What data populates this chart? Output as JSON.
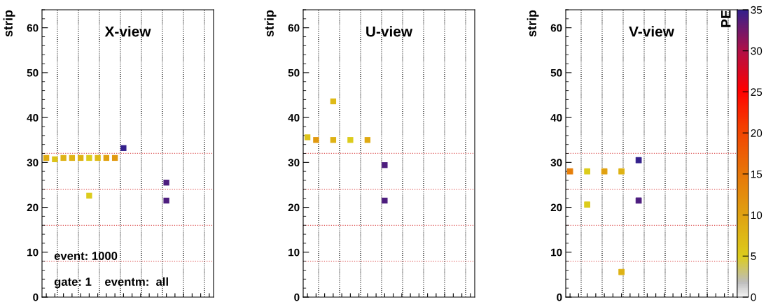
{
  "chart_data": [
    {
      "type": "scatter",
      "title": "X-view",
      "ylabel": "strip",
      "marker": "square",
      "grid": "x",
      "tick_labels": "y",
      "categories": [
        null,
        null,
        null,
        null,
        null,
        null,
        null,
        null,
        null,
        null,
        null,
        null,
        null,
        null,
        null,
        null,
        null,
        null,
        null,
        null
      ],
      "ylim": [
        0,
        64
      ],
      "yticks": [
        0,
        10,
        20,
        30,
        40,
        50,
        60
      ],
      "series": [
        {
          "values": [
            31,
            30.7,
            31,
            31,
            31,
            31,
            31,
            31,
            31,
            33.2,
            null,
            null,
            null,
            null,
            25.5,
            null,
            null,
            null,
            null,
            null
          ],
          "colors": [
            "#dfaa13",
            "#ddc319",
            "#deb215",
            "#deb215",
            "#deb215",
            "#dccc1c",
            "#deba17",
            "#e0a110",
            "#e1990f",
            "#34208c",
            null,
            null,
            null,
            null,
            "#4d1d7e",
            null,
            null,
            null,
            null,
            null
          ]
        },
        {
          "values": [
            null,
            null,
            null,
            null,
            null,
            22.6,
            null,
            null,
            null,
            null,
            null,
            null,
            null,
            null,
            21.5,
            null,
            null,
            null,
            null,
            null
          ],
          "colors": [
            null,
            null,
            null,
            null,
            null,
            "#dccc1c",
            null,
            null,
            null,
            null,
            null,
            null,
            null,
            null,
            "#4d1d7e",
            null,
            null,
            null,
            null,
            null
          ]
        }
      ],
      "ref_lines": [
        {
          "axis": "y",
          "value": 8,
          "color": "#e06060",
          "line_style": "dotted"
        },
        {
          "axis": "y",
          "value": 16,
          "color": "#e06060",
          "line_style": "dotted"
        },
        {
          "axis": "y",
          "value": 24,
          "color": "#e06060",
          "line_style": "dotted"
        },
        {
          "axis": "y",
          "value": 32,
          "color": "#e06060",
          "line_style": "dotted"
        }
      ],
      "annotations": [
        "event: 1000",
        "gate: 1    eventm:  all"
      ]
    },
    {
      "type": "scatter",
      "title": "U-view",
      "ylabel": "strip",
      "marker": "square",
      "grid": "x",
      "tick_labels": "y",
      "categories": [
        null,
        null,
        null,
        null,
        null,
        null,
        null,
        null,
        null,
        null,
        null,
        null,
        null,
        null,
        null,
        null,
        null,
        null,
        null,
        null
      ],
      "ylim": [
        0,
        64
      ],
      "yticks": [
        0,
        10,
        20,
        30,
        40,
        50,
        60
      ],
      "series": [
        {
          "values": [
            35.6,
            35,
            null,
            35,
            null,
            35,
            null,
            35,
            null,
            29.4,
            null,
            null,
            null,
            null,
            null,
            null,
            null,
            null,
            null,
            null
          ],
          "colors": [
            "#ddc319",
            "#e1990f",
            null,
            "#deb215",
            null,
            "#dccc1c",
            null,
            "#dfaa13",
            null,
            "#4d1d7e",
            null,
            null,
            null,
            null,
            null,
            null,
            null,
            null,
            null,
            null
          ]
        },
        {
          "values": [
            null,
            null,
            null,
            43.6,
            null,
            null,
            null,
            null,
            null,
            21.5,
            null,
            null,
            null,
            null,
            null,
            null,
            null,
            null,
            null,
            null
          ],
          "colors": [
            null,
            null,
            null,
            "#deba17",
            null,
            null,
            null,
            null,
            null,
            "#4d1d7e",
            null,
            null,
            null,
            null,
            null,
            null,
            null,
            null,
            null,
            null
          ]
        }
      ],
      "ref_lines": [
        {
          "axis": "y",
          "value": 8,
          "color": "#e06060",
          "line_style": "dotted"
        },
        {
          "axis": "y",
          "value": 16,
          "color": "#e06060",
          "line_style": "dotted"
        },
        {
          "axis": "y",
          "value": 24,
          "color": "#e06060",
          "line_style": "dotted"
        },
        {
          "axis": "y",
          "value": 32,
          "color": "#e06060",
          "line_style": "dotted"
        }
      ]
    },
    {
      "type": "scatter",
      "title": "V-view",
      "ylabel": "strip",
      "marker": "square",
      "grid": "x",
      "tick_labels": "y",
      "categories": [
        null,
        null,
        null,
        null,
        null,
        null,
        null,
        null,
        null,
        null,
        null,
        null,
        null,
        null,
        null,
        null,
        null,
        null,
        null,
        null
      ],
      "ylim": [
        0,
        64
      ],
      "yticks": [
        0,
        10,
        20,
        30,
        40,
        50,
        60
      ],
      "clim": [
        0,
        35
      ],
      "cticks": [
        0,
        5,
        10,
        15,
        20,
        25,
        30,
        35
      ],
      "clabel": "PE",
      "series": [
        {
          "values": [
            28,
            null,
            28,
            null,
            28,
            null,
            28,
            null,
            30.5,
            null,
            null,
            null,
            null,
            null,
            null,
            null,
            null,
            null,
            null,
            null
          ],
          "cvalues": [
            14,
            null,
            5,
            null,
            10,
            null,
            8,
            null,
            35,
            null,
            null,
            null,
            null,
            null,
            null,
            null,
            null,
            null,
            null,
            null
          ],
          "colors": [
            "#e57f0a",
            null,
            "#dccc1c",
            null,
            "#e0a110",
            null,
            "#deb215",
            null,
            "#34208c",
            null,
            null,
            null,
            null,
            null,
            null,
            null,
            null,
            null,
            null,
            null
          ]
        },
        {
          "values": [
            null,
            null,
            20.6,
            null,
            null,
            null,
            5.6,
            null,
            21.5,
            null,
            null,
            null,
            null,
            null,
            null,
            null,
            null,
            null,
            null,
            null
          ],
          "cvalues": [
            null,
            null,
            5,
            null,
            null,
            null,
            8,
            null,
            34,
            null,
            null,
            null,
            null,
            null,
            null,
            null,
            null,
            null,
            null,
            null
          ],
          "colors": [
            null,
            null,
            "#dccc1c",
            null,
            null,
            null,
            "#deb215",
            null,
            "#4d1d7e",
            null,
            null,
            null,
            null,
            null,
            null,
            null,
            null,
            null,
            null,
            null
          ]
        }
      ],
      "ref_lines": [
        {
          "axis": "y",
          "value": 8,
          "color": "#e06060",
          "line_style": "dotted"
        },
        {
          "axis": "y",
          "value": 16,
          "color": "#e06060",
          "line_style": "dotted"
        },
        {
          "axis": "y",
          "value": 24,
          "color": "#e06060",
          "line_style": "dotted"
        },
        {
          "axis": "y",
          "value": 32,
          "color": "#e06060",
          "line_style": "dotted"
        }
      ]
    }
  ]
}
